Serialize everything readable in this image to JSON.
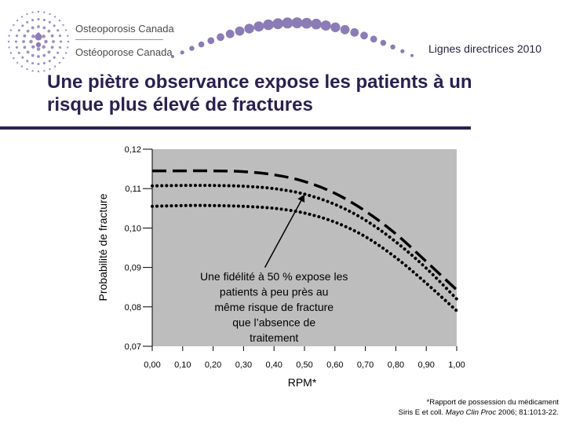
{
  "header": {
    "org_name_en": "Osteoporosis Canada",
    "org_name_fr": "Ostéoporose Canada",
    "subtitle": "Lignes directrices 2010",
    "logo_icon": "osteoporosis-canada-dot-figure-logo",
    "accent_color": "#2b2050",
    "logo_dot_color": "#8c7cb6"
  },
  "slide": {
    "title": "Une piètre observance expose les patients à un risque plus élevé de fractures"
  },
  "chart_data": {
    "type": "line",
    "xlabel": "RPM*",
    "ylabel": "Probabilité de fracture",
    "xlim": [
      0,
      1
    ],
    "ylim": [
      0.07,
      0.12
    ],
    "x_tick_labels": [
      "0,00",
      "0,10",
      "0,20",
      "0,30",
      "0,40",
      "0,50",
      "0,60",
      "0,70",
      "0,80",
      "0,90",
      "1,00"
    ],
    "y_tick_labels": [
      "0,12",
      "0,11",
      "0,10",
      "0,09",
      "0,08",
      "0,07"
    ],
    "plot_background": "#bdbdbd",
    "grid": false,
    "series": [
      {
        "style": "dashed",
        "x": [
          0.0,
          0.1,
          0.2,
          0.3,
          0.4,
          0.5,
          0.6,
          0.7,
          0.8,
          0.9,
          1.0
        ],
        "y": [
          0.1145,
          0.1145,
          0.1145,
          0.1143,
          0.1135,
          0.1118,
          0.1088,
          0.1043,
          0.0985,
          0.0915,
          0.0843
        ]
      },
      {
        "style": "dotted",
        "x": [
          0.0,
          0.1,
          0.2,
          0.3,
          0.4,
          0.5,
          0.6,
          0.7,
          0.8,
          0.9,
          1.0
        ],
        "y": [
          0.1107,
          0.1108,
          0.1108,
          0.1106,
          0.11,
          0.1086,
          0.106,
          0.102,
          0.0965,
          0.0898,
          0.082
        ]
      },
      {
        "style": "dotted",
        "x": [
          0.0,
          0.1,
          0.2,
          0.3,
          0.4,
          0.5,
          0.6,
          0.7,
          0.8,
          0.9,
          1.0
        ],
        "y": [
          0.1055,
          0.1057,
          0.1057,
          0.1055,
          0.105,
          0.1038,
          0.1015,
          0.0978,
          0.0925,
          0.086,
          0.079
        ]
      }
    ],
    "annotation": {
      "text_lines": [
        "Une fidélité à 50 % expose les",
        "patients à peu près au",
        "même risque de fracture",
        "que l’absence de",
        "traitement"
      ],
      "arrow_to": {
        "x": 0.5,
        "y": 0.1085
      },
      "arrow_from": {
        "x": 0.37,
        "y": 0.09
      }
    }
  },
  "footnote": {
    "line1": "*Rapport de possession du médicament",
    "authors": "Siris E et coll. ",
    "journal": "Mayo Clin Proc",
    "citation": " 2006; 81:1013-22."
  }
}
